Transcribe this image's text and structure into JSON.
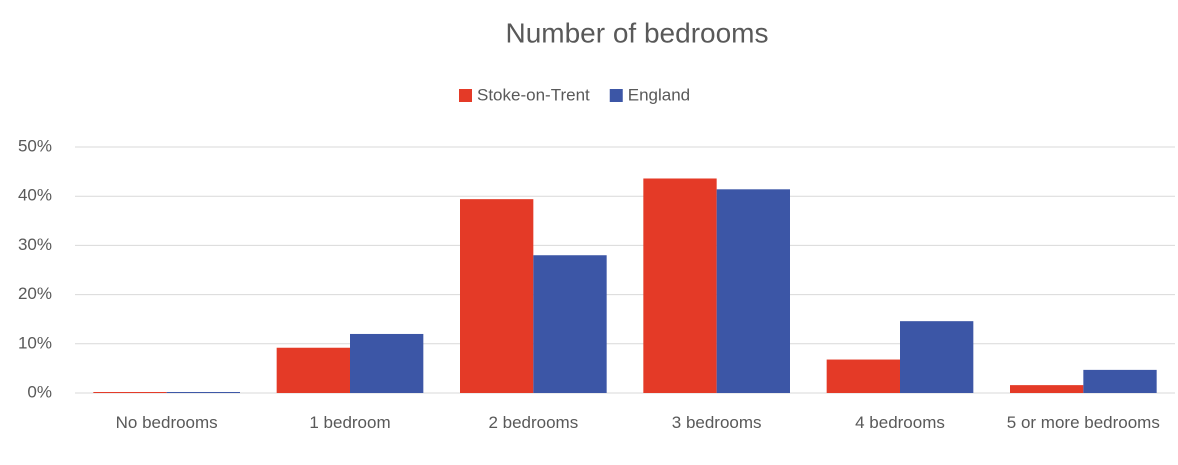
{
  "chart_data": {
    "type": "bar",
    "title": "Number of bedrooms",
    "categories": [
      "No bedrooms",
      "1 bedroom",
      "2 bedrooms",
      "3 bedrooms",
      "4 bedrooms",
      "5 or more bedrooms"
    ],
    "series": [
      {
        "name": "Stoke-on-Trent",
        "color": "#e43a27",
        "values": [
          0.2,
          9.2,
          39.4,
          43.6,
          6.8,
          1.6
        ]
      },
      {
        "name": "England",
        "color": "#3c56a6",
        "values": [
          0.2,
          12.0,
          28.0,
          41.4,
          14.6,
          4.7
        ]
      }
    ],
    "ylim": [
      0,
      50
    ],
    "yticks": [
      {
        "value": 0,
        "label": "0%"
      },
      {
        "value": 10,
        "label": "10%"
      },
      {
        "value": 20,
        "label": "20%"
      },
      {
        "value": 30,
        "label": "30%"
      },
      {
        "value": 40,
        "label": "40%"
      },
      {
        "value": 50,
        "label": "50%"
      }
    ],
    "grid": true,
    "legend": "top"
  }
}
